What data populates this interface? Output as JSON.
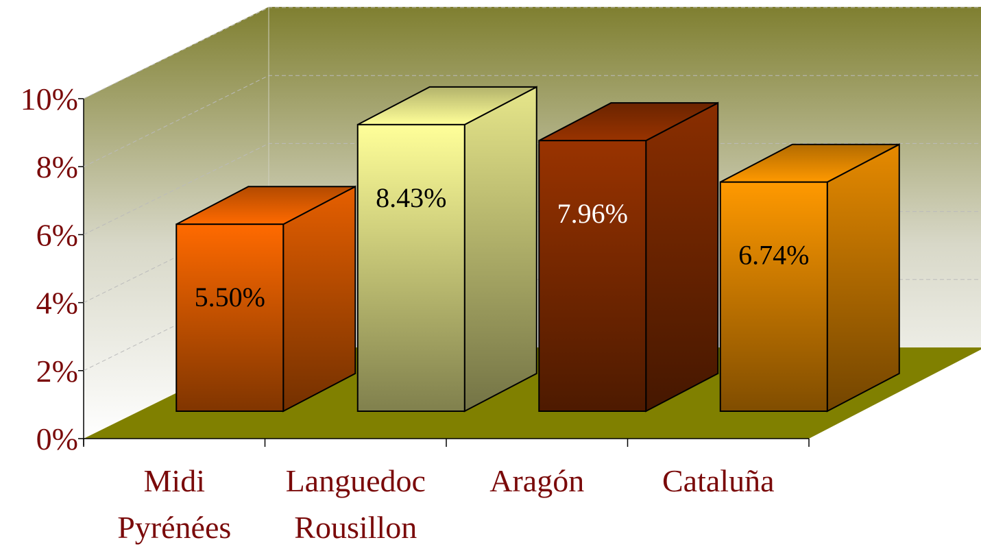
{
  "chart_data": {
    "type": "bar3d",
    "categories": [
      "Midi Pyrénées",
      "Languedoc Rousillon",
      "Aragón",
      "Cataluña"
    ],
    "values": [
      5.5,
      8.43,
      7.96,
      6.74
    ],
    "value_labels": [
      "5.50%",
      "8.43%",
      "7.96%",
      "6.74%"
    ],
    "colors": [
      "#ff6a00",
      "#ffff99",
      "#993300",
      "#ff9900"
    ],
    "ylim": [
      0,
      10
    ],
    "yticks": [
      {
        "value": 0,
        "label": "0%"
      },
      {
        "value": 2,
        "label": "2%"
      },
      {
        "value": 4,
        "label": "4%"
      },
      {
        "value": 6,
        "label": "6%"
      },
      {
        "value": 8,
        "label": "8%"
      },
      {
        "value": 10,
        "label": "10%"
      }
    ],
    "grid": true
  }
}
